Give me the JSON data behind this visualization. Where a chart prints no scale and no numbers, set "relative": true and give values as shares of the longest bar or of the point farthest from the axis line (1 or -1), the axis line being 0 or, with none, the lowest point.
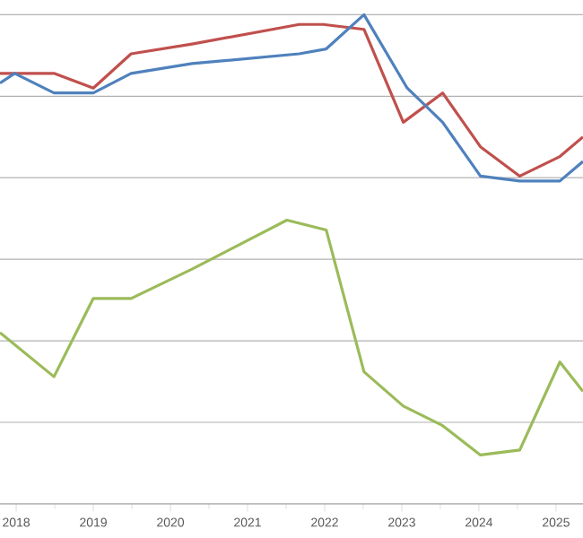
{
  "chart_data": {
    "type": "line",
    "relative": true,
    "grid": "y",
    "tick_labels": "x",
    "xlim": [
      2017.79,
      2025.35
    ],
    "xticks": [
      2018,
      2019,
      2020,
      2021,
      2022,
      2023,
      2024,
      2025
    ],
    "marker": "none",
    "line_style": "solid",
    "series": [
      {
        "color": "#c0504d",
        "x": [
          2017.79,
          2018.49,
          2019.0,
          2019.49,
          2020.28,
          2021.67,
          2021.98,
          2022.51,
          2023.02,
          2023.53,
          2024.02,
          2024.53,
          2025.05,
          2025.35
        ],
        "values": [
          0.88,
          0.88,
          0.85,
          0.92,
          0.94,
          0.98,
          0.98,
          0.97,
          0.78,
          0.84,
          0.73,
          0.67,
          0.71,
          0.75
        ]
      },
      {
        "color": "#4f81bd",
        "x": [
          2017.79,
          2017.98,
          2018.49,
          2019.0,
          2019.49,
          2020.28,
          2021.67,
          2022.02,
          2022.51,
          2023.07,
          2023.53,
          2024.02,
          2024.53,
          2025.05,
          2025.35
        ],
        "values": [
          0.86,
          0.88,
          0.84,
          0.84,
          0.88,
          0.9,
          0.92,
          0.93,
          1.0,
          0.85,
          0.78,
          0.67,
          0.66,
          0.66,
          0.7
        ]
      },
      {
        "color": "#9bbb59",
        "x": [
          2017.79,
          2018.49,
          2019.0,
          2019.49,
          2020.28,
          2021.51,
          2022.02,
          2022.51,
          2023.02,
          2023.53,
          2024.02,
          2024.53,
          2025.05,
          2025.35
        ],
        "values": [
          0.35,
          0.26,
          0.42,
          0.42,
          0.48,
          0.58,
          0.56,
          0.27,
          0.2,
          0.16,
          0.1,
          0.11,
          0.29,
          0.23
        ]
      }
    ]
  }
}
